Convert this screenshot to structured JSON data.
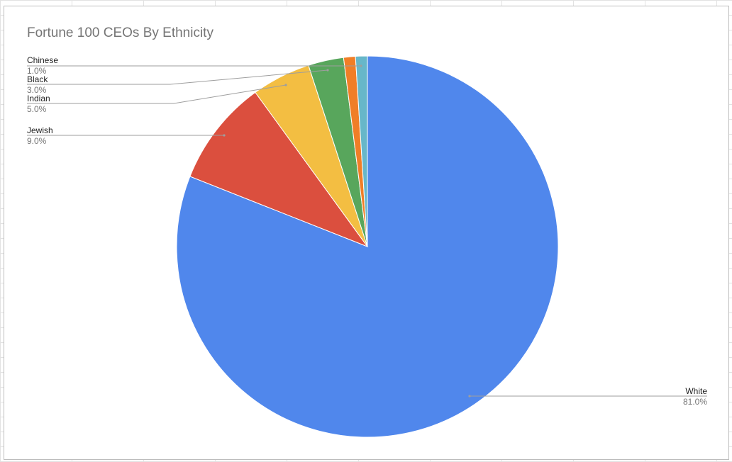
{
  "chart_data": {
    "type": "pie",
    "title": "Fortune 100 CEOs By Ethnicity",
    "slices": [
      {
        "name": "White",
        "value": 81,
        "label": "81.0%",
        "color": "#5087EC"
      },
      {
        "name": "Jewish",
        "value": 9,
        "label": "9.0%",
        "color": "#DB4F3E"
      },
      {
        "name": "Indian",
        "value": 5,
        "label": "5.0%",
        "color": "#F3BE42"
      },
      {
        "name": "Black",
        "value": 3,
        "label": "3.0%",
        "color": "#58A65C"
      },
      {
        "name": "Chinese",
        "value": 1,
        "label": "1.0%",
        "color": "#F07E27"
      },
      {
        "name": "",
        "value": 1,
        "label": "",
        "color": "#67B7C9"
      }
    ],
    "start_angle_deg": 0,
    "direction": "clockwise-from-top",
    "legend": "none",
    "data_labels": "outside-with-leader-lines"
  }
}
